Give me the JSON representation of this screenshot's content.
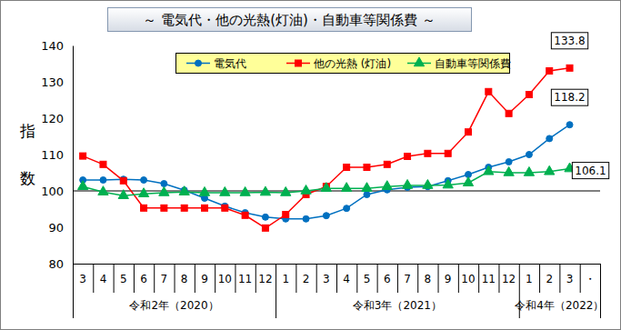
{
  "chart_data": {
    "type": "line",
    "title": "～ 電気代・他の光熱(灯油)・自動車等関係費 ～",
    "y_label": "指数",
    "categories": [
      "3",
      "4",
      "5",
      "6",
      "7",
      "8",
      "9",
      "10",
      "11",
      "12",
      "1",
      "2",
      "3",
      "4",
      "5",
      "6",
      "7",
      "8",
      "9",
      "10",
      "11",
      "12",
      "1",
      "2",
      "3",
      "・"
    ],
    "groups": [
      {
        "label": "令和2年（2020）",
        "size": 10
      },
      {
        "label": "令和3年（2021）",
        "size": 12
      },
      {
        "label": "令和4年（2022）",
        "size": 4
      }
    ],
    "series": [
      {
        "name": "電気代",
        "color": "#0070c0",
        "marker": "circle",
        "values": [
          103.0,
          103.0,
          103.2,
          103.0,
          102.0,
          100.2,
          98.0,
          95.8,
          94.0,
          92.8,
          92.3,
          92.3,
          93.2,
          95.2,
          99.0,
          100.3,
          101.0,
          101.2,
          102.8,
          104.5,
          106.5,
          108.0,
          110.0,
          114.4,
          118.2,
          null
        ],
        "value_labels": [
          null,
          null,
          null,
          null,
          null,
          null,
          null,
          null,
          null,
          null,
          null,
          null,
          null,
          null,
          null,
          null,
          null,
          null,
          null,
          null,
          null,
          null,
          null,
          null,
          "118.2",
          null
        ]
      },
      {
        "name": "他の光熱 (灯油)",
        "color": "#ff0000",
        "marker": "square",
        "values": [
          109.6,
          107.3,
          102.8,
          95.3,
          95.3,
          95.3,
          95.3,
          95.3,
          93.3,
          89.8,
          93.5,
          99.0,
          101.2,
          106.5,
          106.5,
          107.3,
          109.5,
          110.3,
          110.3,
          116.2,
          127.3,
          121.3,
          126.5,
          133.0,
          133.8,
          null
        ],
        "value_labels": [
          null,
          null,
          null,
          null,
          null,
          null,
          null,
          null,
          null,
          null,
          null,
          null,
          null,
          null,
          null,
          null,
          null,
          null,
          null,
          null,
          null,
          null,
          null,
          null,
          "133.8",
          null
        ]
      },
      {
        "name": "自動車等関係費",
        "color": "#00b050",
        "marker": "triangle",
        "values": [
          101.2,
          99.7,
          98.7,
          99.2,
          99.5,
          99.7,
          99.5,
          99.5,
          99.5,
          99.6,
          99.5,
          100.0,
          100.7,
          100.7,
          100.7,
          101.2,
          101.5,
          101.5,
          101.6,
          102.2,
          105.3,
          105.0,
          105.0,
          105.3,
          106.1,
          null
        ],
        "value_labels": [
          null,
          null,
          null,
          null,
          null,
          null,
          null,
          null,
          null,
          null,
          null,
          null,
          null,
          null,
          null,
          null,
          null,
          null,
          null,
          null,
          null,
          null,
          null,
          null,
          "106.1",
          null
        ]
      }
    ],
    "ylim": [
      80,
      140
    ],
    "yticks": [
      80,
      90,
      100,
      110,
      120,
      130,
      140
    ],
    "reference_line": 100,
    "grid": false,
    "legend": "top"
  }
}
